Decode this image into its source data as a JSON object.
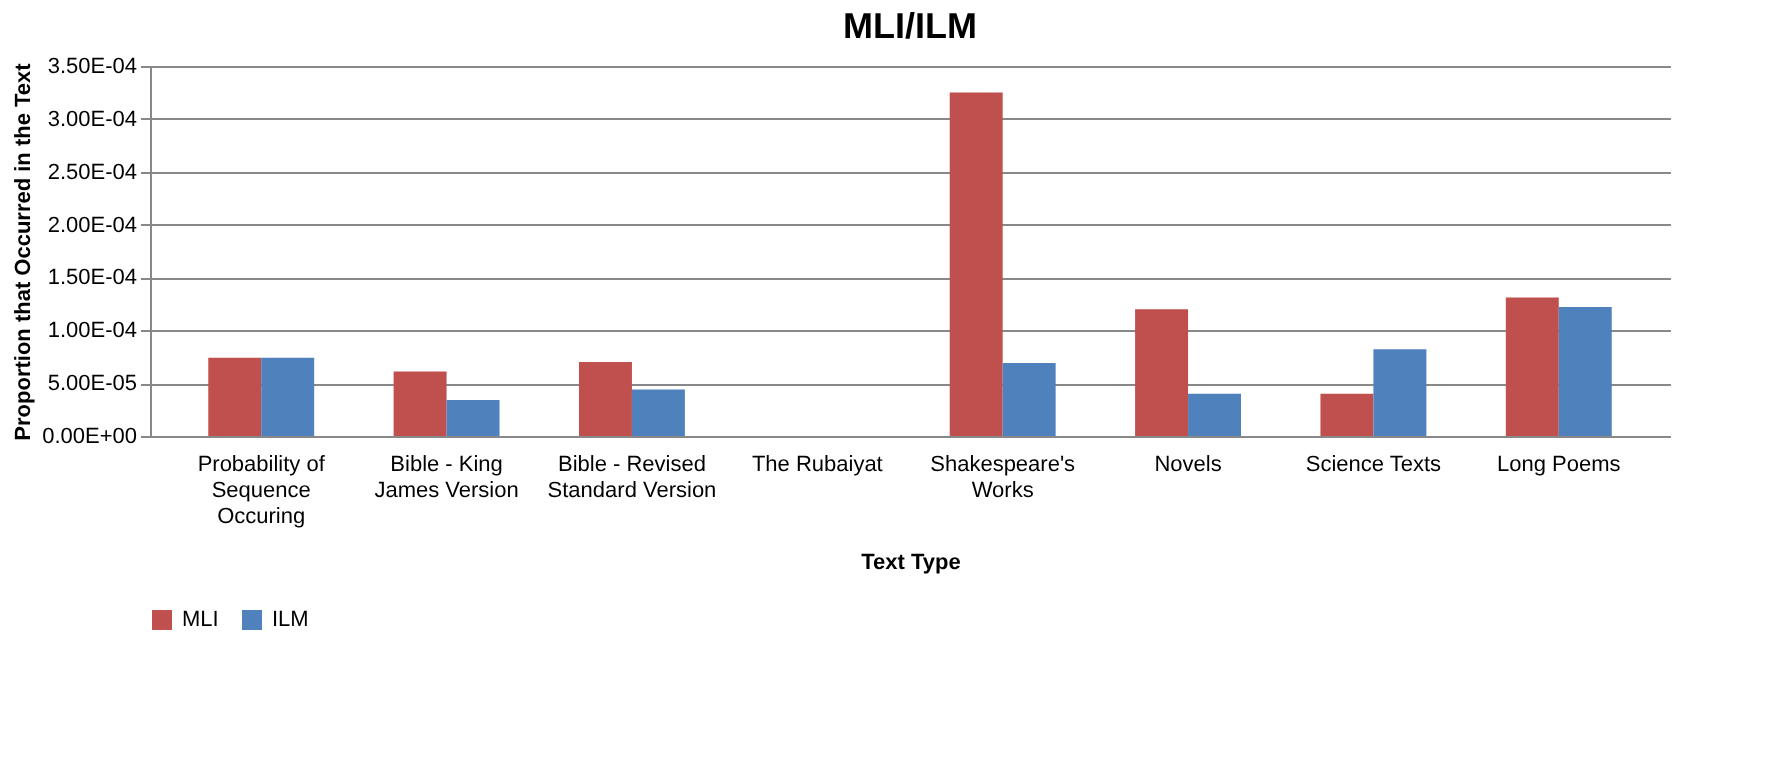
{
  "chart_data": {
    "type": "bar",
    "title": "MLI/ILM",
    "xlabel": "Text Type",
    "ylabel": "Proportion that Occurred in the Text",
    "categories": [
      "Probability of Sequence Occuring",
      "Bible - King James Version",
      "Bible - Revised Standard Version",
      "The Rubaiyat",
      "Shakespeare's Works",
      "Novels",
      "Science Texts",
      "Long Poems"
    ],
    "series": [
      {
        "name": "MLI",
        "color": "#c0504d",
        "values": [
          7.4e-05,
          6.1e-05,
          7e-05,
          0,
          0.000325,
          0.00012,
          4e-05,
          0.000131
        ]
      },
      {
        "name": "ILM",
        "color": "#4f81bd",
        "values": [
          7.4e-05,
          3.4e-05,
          4.4e-05,
          0,
          6.9e-05,
          4e-05,
          8.2e-05,
          0.000122
        ]
      }
    ],
    "ylim": [
      0,
      0.00035
    ],
    "yticks": [
      {
        "value": 0,
        "label": "0.00E+00"
      },
      {
        "value": 5e-05,
        "label": "5.00E-05"
      },
      {
        "value": 0.0001,
        "label": "1.00E-04"
      },
      {
        "value": 0.00015,
        "label": "1.50E-04"
      },
      {
        "value": 0.0002,
        "label": "2.00E-04"
      },
      {
        "value": 0.00025,
        "label": "2.50E-04"
      },
      {
        "value": 0.0003,
        "label": "3.00E-04"
      },
      {
        "value": 0.00035,
        "label": "3.50E-04"
      }
    ],
    "grid": "y",
    "legend": "bottom"
  }
}
